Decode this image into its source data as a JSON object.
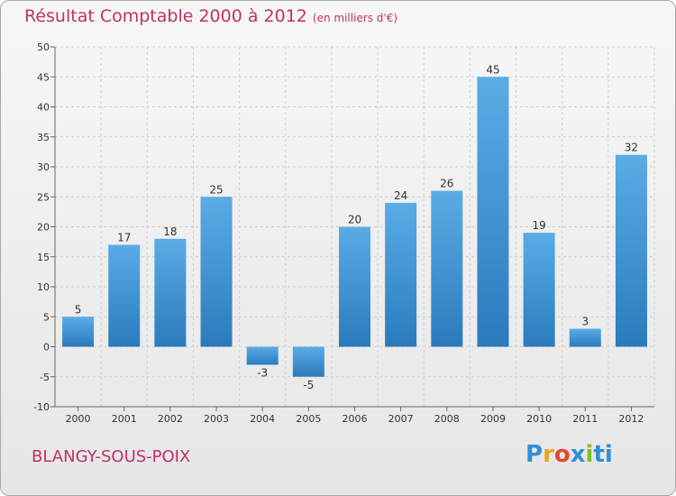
{
  "title": "Résultat Comptable 2000 à 2012",
  "subtitle": "(en milliers d'€)",
  "town": "BLANGY-SOUS-POIX",
  "logo": [
    "P",
    "r",
    "o",
    "x",
    "i",
    "ti"
  ],
  "colors": {
    "title": "#c0306a",
    "bar_top": "#5aace6",
    "bar_bottom": "#2a7bbd",
    "grid": "#cfcfcf"
  },
  "chart_data": {
    "type": "bar",
    "title": "Résultat Comptable 2000 à 2012",
    "subtitle": "(en milliers d'€)",
    "xlabel": "",
    "ylabel": "",
    "categories": [
      "2000",
      "2001",
      "2002",
      "2003",
      "2004",
      "2005",
      "2006",
      "2007",
      "2008",
      "2009",
      "2010",
      "2011",
      "2012"
    ],
    "values": [
      5,
      17,
      18,
      25,
      -3,
      -5,
      20,
      24,
      26,
      45,
      19,
      3,
      32
    ],
    "ylim": [
      -10,
      50
    ],
    "yticks": [
      -10,
      -5,
      0,
      5,
      10,
      15,
      20,
      25,
      30,
      35,
      40,
      45,
      50
    ],
    "grid": true
  }
}
